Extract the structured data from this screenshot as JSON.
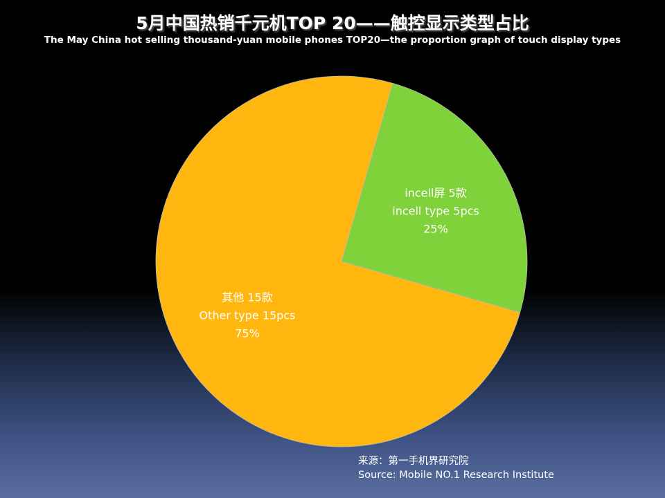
{
  "title": "5月中国热销千元机TOP 20——触控显示类型占比",
  "subtitle": "The May  China hot selling thousand-yuan mobile phones TOP20—the proportion graph of touch display types",
  "chart_data": {
    "type": "pie",
    "title": "5月中国热销千元机TOP 20——触控显示类型占比",
    "subtitle": "The May  China hot selling thousand-yuan mobile phones TOP20—the proportion graph of touch display types",
    "slices": [
      {
        "name": "incell",
        "value": 5,
        "percent": 25,
        "color": "#7fd23a",
        "labels": [
          "incell屏 5款",
          "incell type 5pcs",
          "25%"
        ]
      },
      {
        "name": "other",
        "value": 15,
        "percent": 75,
        "color": "#ffb70f",
        "labels": [
          "其他 15款",
          "Other type 15pcs",
          "75%"
        ]
      }
    ]
  },
  "source": {
    "line1": "来源：第一手机界研究院",
    "line2": "Source: Mobile NO.1 Research Institute"
  }
}
